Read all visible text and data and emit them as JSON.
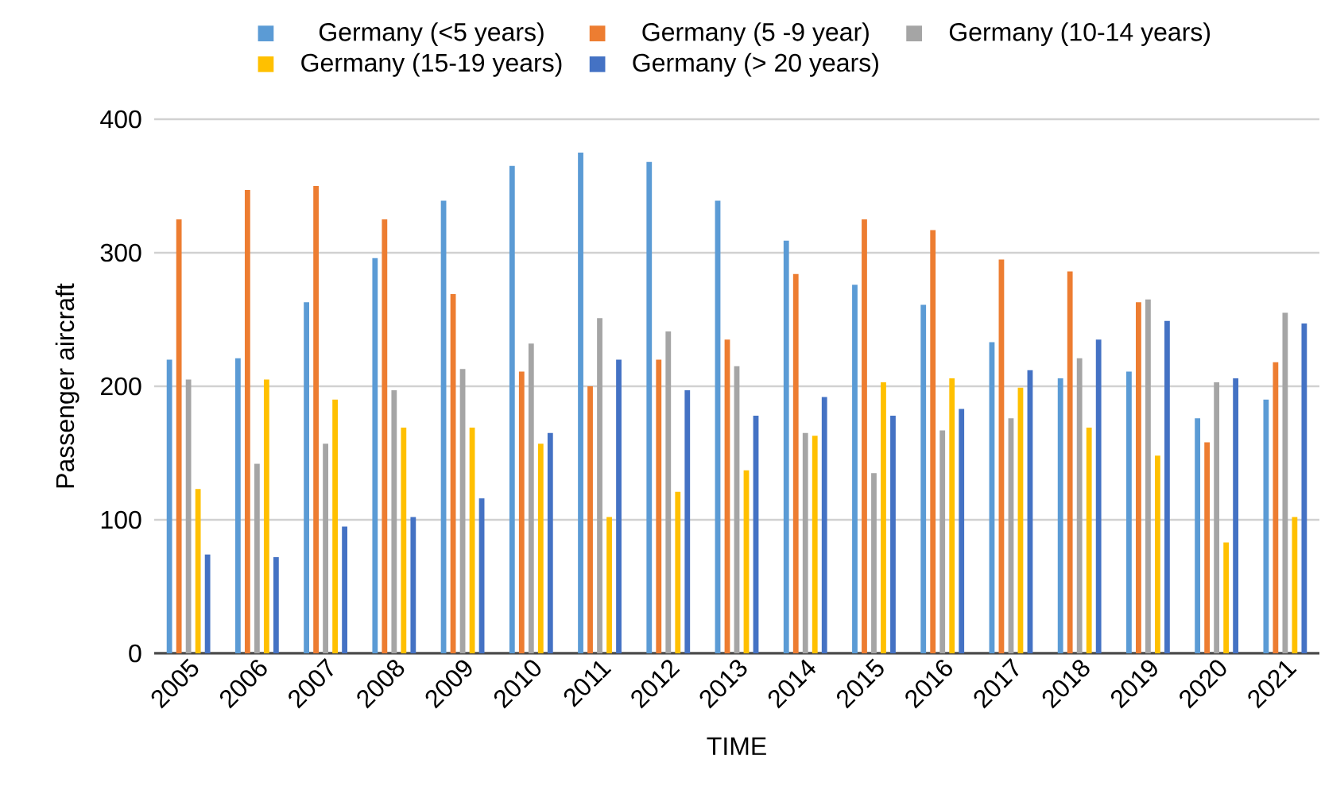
{
  "chart_data": {
    "type": "bar",
    "xlabel": "TIME",
    "ylabel": "Passenger aircraft",
    "categories": [
      "2005",
      "2006",
      "2007",
      "2008",
      "2009",
      "2010",
      "2011",
      "2012",
      "2013",
      "2014",
      "2015",
      "2016",
      "2017",
      "2018",
      "2019",
      "2020",
      "2021"
    ],
    "series": [
      {
        "name": "Germany  (<5 years)",
        "color": "#5b9bd5",
        "values": [
          220,
          221,
          263,
          296,
          339,
          365,
          375,
          368,
          339,
          309,
          276,
          261,
          233,
          206,
          211,
          176,
          190
        ]
      },
      {
        "name": "Germany (5 -9 year)",
        "color": "#ed7d31",
        "values": [
          325,
          347,
          350,
          325,
          269,
          211,
          200,
          220,
          235,
          284,
          325,
          317,
          295,
          286,
          263,
          158,
          218
        ]
      },
      {
        "name": "Germany (10-14 years)",
        "color": "#a5a5a5",
        "values": [
          205,
          142,
          157,
          197,
          213,
          232,
          251,
          241,
          215,
          165,
          135,
          167,
          176,
          221,
          265,
          203,
          255
        ]
      },
      {
        "name": "Germany (15-19 years)",
        "color": "#ffc000",
        "values": [
          123,
          205,
          190,
          169,
          169,
          157,
          102,
          121,
          137,
          163,
          203,
          206,
          199,
          169,
          148,
          83,
          102
        ]
      },
      {
        "name": "Germany (> 20 years)",
        "color": "#4472c4",
        "values": [
          74,
          72,
          95,
          102,
          116,
          165,
          220,
          197,
          178,
          192,
          178,
          183,
          212,
          235,
          249,
          206,
          247
        ]
      }
    ],
    "ylim": [
      0,
      400
    ],
    "yticks": [
      0,
      100,
      200,
      300,
      400
    ],
    "grid": "y",
    "legend": "top"
  }
}
